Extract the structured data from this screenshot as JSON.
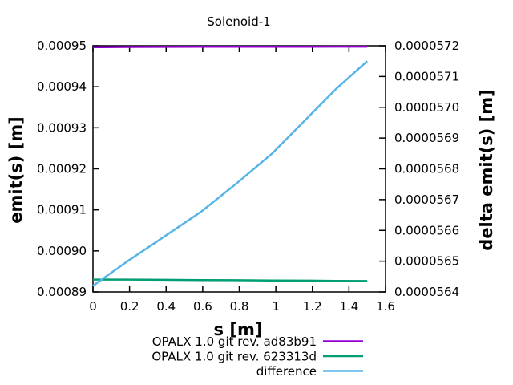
{
  "window": {
    "background": "#ffffff",
    "text_color": "#000000"
  },
  "chart_data": {
    "type": "line",
    "title": "Solenoid-1",
    "xlabel": "s [m]",
    "ylabel": "emit(s) [m]",
    "y2label": "delta emit(s) [m]",
    "grid": false,
    "legend_position": "below-right",
    "xlim": [
      0,
      1.6
    ],
    "ylim": [
      0.00089,
      0.00095
    ],
    "y2lim": [
      5.64e-05,
      5.72e-05
    ],
    "xticks": {
      "values": [
        0,
        0.2,
        0.4,
        0.6,
        0.8,
        1.0,
        1.2,
        1.4,
        1.6
      ],
      "labels": [
        "0",
        "0.2",
        "0.4",
        "0.6",
        "0.8",
        "1",
        "1.2",
        "1.4",
        "1.6"
      ]
    },
    "yticks": {
      "values": [
        0.00089,
        0.0009,
        0.00091,
        0.00092,
        0.00093,
        0.00094,
        0.00095
      ],
      "labels": [
        "0.00089",
        "0.00090",
        "0.00091",
        "0.00092",
        "0.00093",
        "0.00094",
        "0.00095"
      ]
    },
    "y2ticks": {
      "values": [
        5.64e-05,
        5.65e-05,
        5.66e-05,
        5.67e-05,
        5.68e-05,
        5.69e-05,
        5.7e-05,
        5.71e-05,
        5.72e-05
      ],
      "labels": [
        "0.0000564",
        "0.0000565",
        "0.0000566",
        "0.0000567",
        "0.0000568",
        "0.0000569",
        "0.0000570",
        "0.0000571",
        "0.0000572"
      ]
    },
    "series": [
      {
        "name": "OPALX 1.0 git rev. ad83b91",
        "axis": "y1",
        "color": "#9400d3",
        "x": [
          0,
          0.19,
          0.39,
          0.59,
          0.78,
          0.98,
          1.18,
          1.33,
          1.5
        ],
        "y": [
          0.00094965,
          0.0009497,
          0.00094972,
          0.00094974,
          0.00094975,
          0.00094976,
          0.00094977,
          0.00094978,
          0.00094978
        ]
      },
      {
        "name": "OPALX 1.0 git rev. 623313d",
        "axis": "y1",
        "color": "#009e73",
        "x": [
          0,
          0.19,
          0.39,
          0.59,
          0.78,
          0.98,
          1.18,
          1.33,
          1.5
        ],
        "y": [
          0.000893,
          0.000893,
          0.00089295,
          0.0008929,
          0.00089285,
          0.0008928,
          0.00089275,
          0.0008927,
          0.00089265
        ]
      },
      {
        "name": "difference",
        "axis": "y2",
        "color": "#56b4e9",
        "x": [
          0,
          0.19,
          0.39,
          0.59,
          0.78,
          0.98,
          1.18,
          1.33,
          1.5
        ],
        "y": [
          5.642e-05,
          5.65e-05,
          5.658e-05,
          5.666e-05,
          5.675e-05,
          5.685e-05,
          5.697e-05,
          5.706e-05,
          5.715e-05
        ]
      }
    ]
  }
}
